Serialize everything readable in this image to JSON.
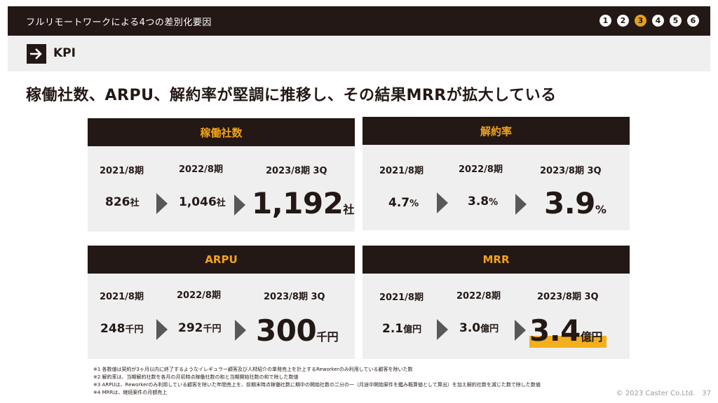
{
  "header": {
    "title": "フルリモートワークによる4つの差別化要因",
    "steps": [
      "1",
      "2",
      "3",
      "4",
      "5",
      "6"
    ],
    "active_step": "3"
  },
  "section": {
    "label": "KPI",
    "icon": "arrow-right-icon"
  },
  "headline": "稼働社数、ARPU、解約率が堅調に推移し、その結果MRRが拡大している",
  "panels": {
    "clients": {
      "title": "稼働社数",
      "periods": [
        "2021/8期",
        "2022/8期",
        "2023/8期 3Q"
      ],
      "values": [
        "826",
        "1,046",
        "1,192"
      ],
      "unit": "社"
    },
    "churn": {
      "title": "解約率",
      "periods": [
        "2021/8期",
        "2022/8期",
        "2023/8期 3Q"
      ],
      "values": [
        "4.7",
        "3.8",
        "3.9"
      ],
      "unit": "%"
    },
    "arpu": {
      "title": "ARPU",
      "periods": [
        "2021/8期",
        "2022/8期",
        "2023/8期 3Q"
      ],
      "values": [
        "248",
        "292",
        "300"
      ],
      "unit": "千円"
    },
    "mrr": {
      "title": "MRR",
      "periods": [
        "2021/8期",
        "2022/8期",
        "2023/8期 3Q"
      ],
      "values": [
        "2.1",
        "3.0",
        "3.4"
      ],
      "unit": "億円"
    }
  },
  "notes": [
    "※1 各数値は契約が3ヶ月以内に終了するようなイレギュラー顧客及び人材紹介の単発売上を計上するReworkerのみ利用している顧客を除いた数",
    "※2 解約率は、当期解約社数を各月の月初時点稼働社数の和と当期開始社数の和で除した数値",
    "※3 ARPUは、Reworkerのみ利用している顧客を除いた年間売上を、前期末時点稼働社数に期中の開始社数の二分の一（月途中開始案件を鑑み概算値として算出）を加え解約社数を減じた数で除した数値",
    "※4 MRRは、継続案件の月額売上"
  ],
  "footer": {
    "copyright": "© 2023 Caster Co.Ltd.",
    "page": "37"
  },
  "colors": {
    "dark": "#231815",
    "accent": "#f2a31b",
    "highlight": "#f2b01e",
    "panel_bg": "#efefef"
  }
}
